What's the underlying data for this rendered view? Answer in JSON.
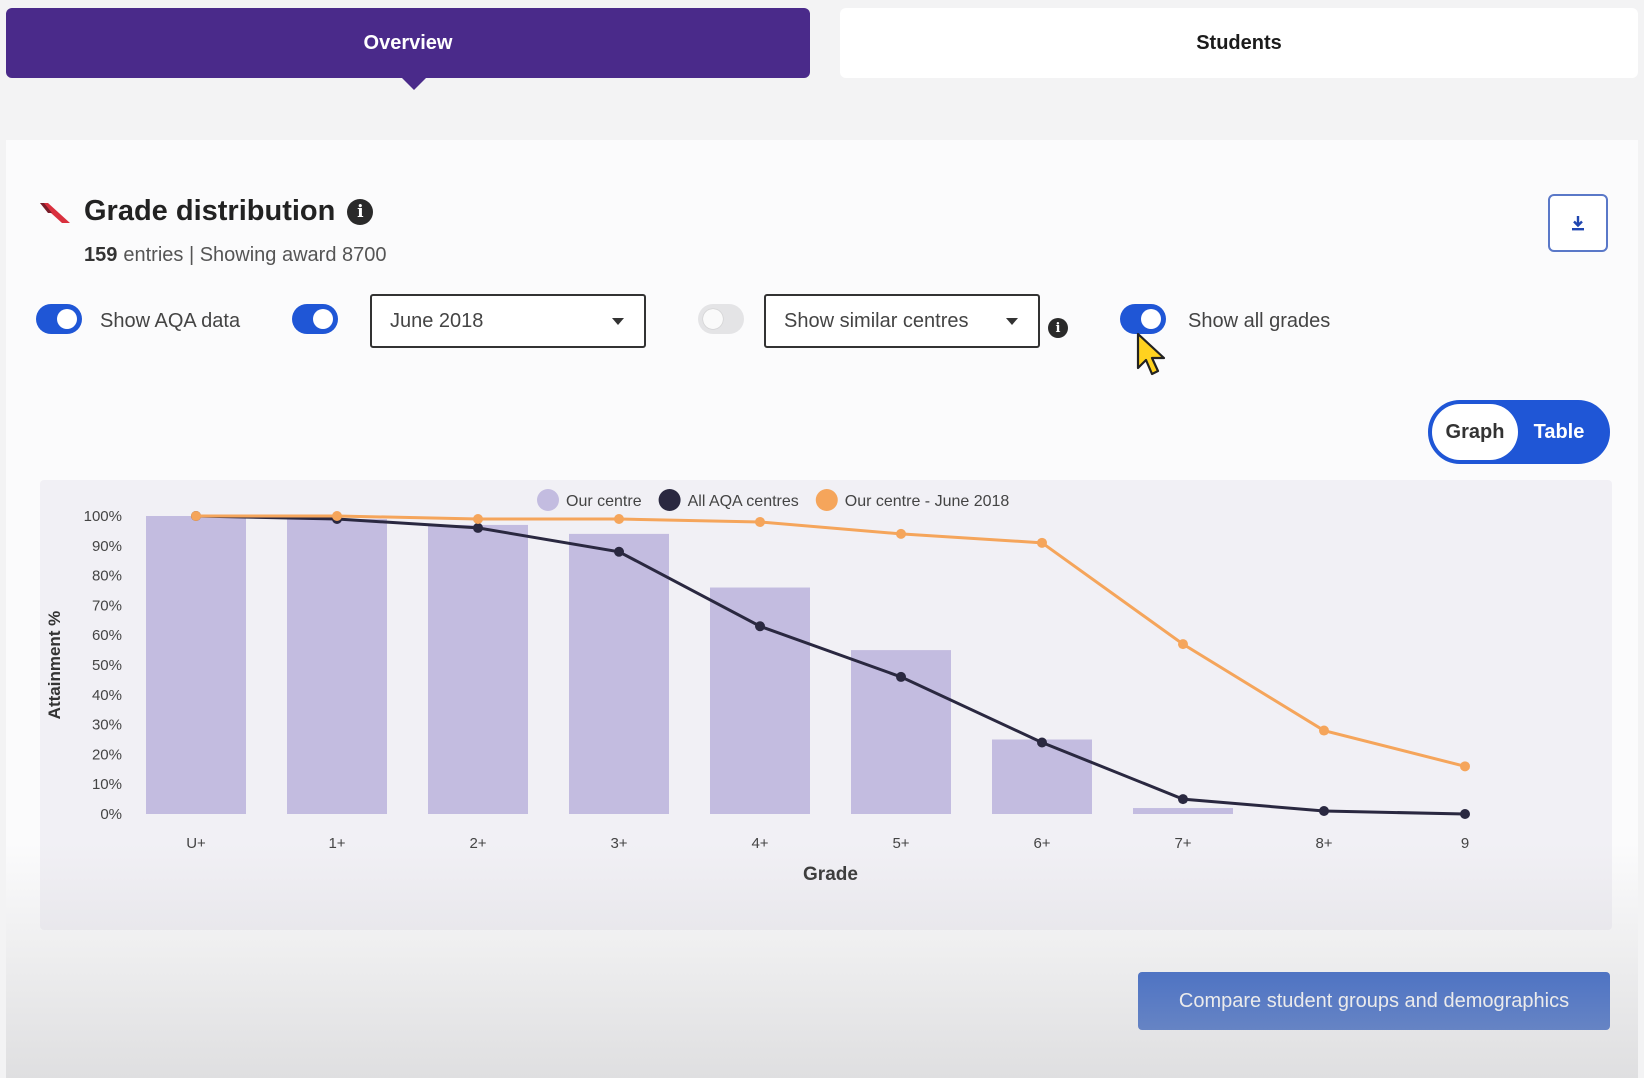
{
  "tabs": {
    "overview": "Overview",
    "students": "Students"
  },
  "section": {
    "title": "Grade distribution",
    "entries_count": "159",
    "entries_text": "entries | Showing award 8700"
  },
  "controls": {
    "show_aqa_label": "Show AQA data",
    "show_aqa_on": true,
    "series_toggle_on": true,
    "series_select_value": "June 2018",
    "similar_toggle_on": false,
    "similar_select_value": "Show similar centres",
    "show_all_grades_label": "Show all grades",
    "show_all_grades_on": true
  },
  "view_switch": {
    "graph_label": "Graph",
    "table_label": "Table",
    "selected": "Graph"
  },
  "compare_button": "Compare student groups and demographics",
  "colors": {
    "tab_active": "#4a2a8a",
    "accent": "#1f56d6",
    "bar": "#c3bce0",
    "aqa_line": "#2a2840",
    "june_line": "#f5a55b"
  },
  "chart_data": {
    "type": "bar",
    "xlabel": "Grade",
    "ylabel": "Attainment %",
    "ylim": [
      0,
      100
    ],
    "yticks": [
      "0%",
      "10%",
      "20%",
      "30%",
      "40%",
      "50%",
      "60%",
      "70%",
      "80%",
      "90%",
      "100%"
    ],
    "categories": [
      "U+",
      "1+",
      "2+",
      "3+",
      "4+",
      "5+",
      "6+",
      "7+",
      "8+",
      "9"
    ],
    "legend": "top-center",
    "series": [
      {
        "name": "Our centre",
        "type": "bar",
        "color": "#c3bce0",
        "values": [
          100,
          99,
          97,
          94,
          76,
          55,
          25,
          2,
          0,
          0
        ]
      },
      {
        "name": "All AQA centres",
        "type": "line",
        "color": "#2a2840",
        "values": [
          100,
          99,
          96,
          88,
          63,
          46,
          24,
          5,
          1,
          0
        ]
      },
      {
        "name": "Our centre - June 2018",
        "type": "line",
        "color": "#f5a55b",
        "values": [
          100,
          100,
          99,
          99,
          98,
          94,
          91,
          57,
          28,
          16
        ]
      }
    ]
  }
}
